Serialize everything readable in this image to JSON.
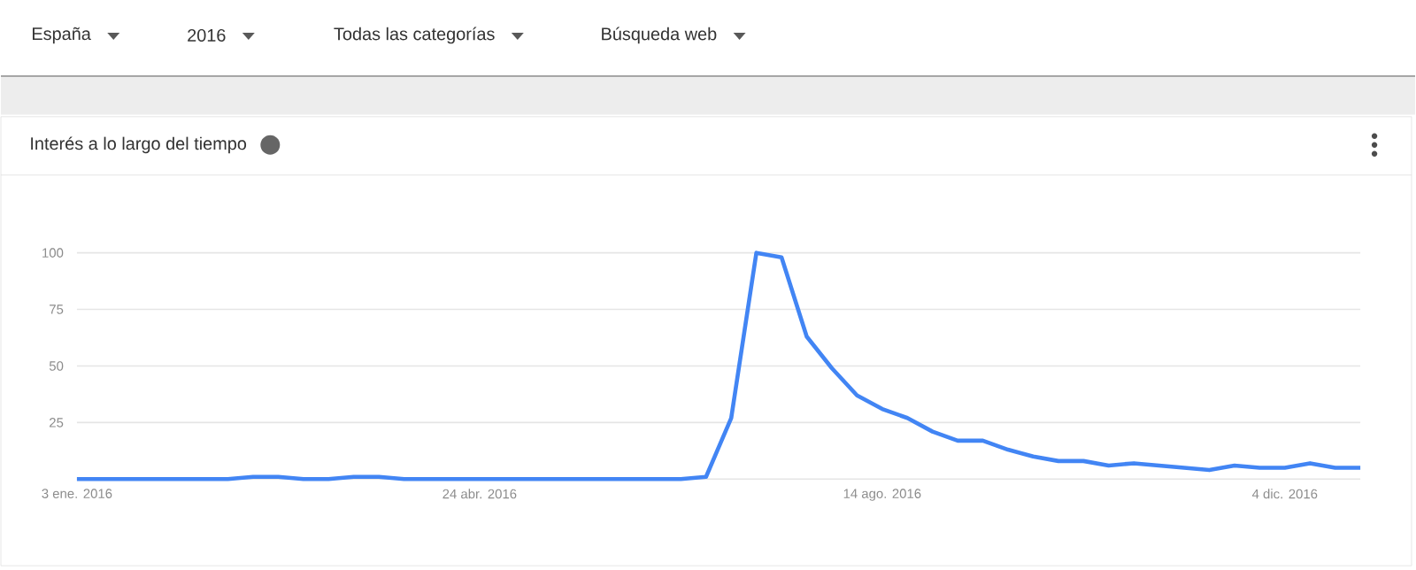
{
  "chart_data": {
    "type": "line",
    "title": "Interés a lo largo del tiempo",
    "annotations": [
      "España",
      "2016",
      "Todas las categorías",
      "Búsqueda web"
    ],
    "x": [
      "2016-01-03",
      "2016-01-10",
      "2016-01-17",
      "2016-01-24",
      "2016-01-31",
      "2016-02-07",
      "2016-02-14",
      "2016-02-21",
      "2016-02-28",
      "2016-03-06",
      "2016-03-13",
      "2016-03-20",
      "2016-03-27",
      "2016-04-03",
      "2016-04-10",
      "2016-04-17",
      "2016-04-24",
      "2016-05-01",
      "2016-05-08",
      "2016-05-15",
      "2016-05-22",
      "2016-05-29",
      "2016-06-05",
      "2016-06-12",
      "2016-06-19",
      "2016-06-26",
      "2016-07-03",
      "2016-07-10",
      "2016-07-17",
      "2016-07-24",
      "2016-07-31",
      "2016-08-07",
      "2016-08-14",
      "2016-08-21",
      "2016-08-28",
      "2016-09-04",
      "2016-09-11",
      "2016-09-18",
      "2016-09-25",
      "2016-10-02",
      "2016-10-09",
      "2016-10-16",
      "2016-10-23",
      "2016-10-30",
      "2016-11-06",
      "2016-11-13",
      "2016-11-20",
      "2016-11-27",
      "2016-12-04",
      "2016-12-11",
      "2016-12-18",
      "2016-12-25"
    ],
    "values": [
      0,
      0,
      0,
      0,
      0,
      0,
      0,
      1,
      1,
      0,
      0,
      1,
      1,
      0,
      0,
      0,
      0,
      0,
      0,
      0,
      0,
      0,
      0,
      0,
      0,
      1,
      27,
      100,
      98,
      63,
      49,
      37,
      31,
      27,
      21,
      17,
      17,
      13,
      10,
      8,
      8,
      6,
      7,
      6,
      5,
      4,
      6,
      5,
      5,
      7,
      5,
      5
    ],
    "color": "#4285f4",
    "line_style": "solid",
    "marker": "none",
    "xlim": [
      "2016-01-03",
      "2016-12-25"
    ],
    "xticks": [
      {
        "value": "2016-01-03",
        "label": "3 ene. 2016"
      },
      {
        "value": "2016-04-24",
        "label": "24 abr. 2016"
      },
      {
        "value": "2016-08-14",
        "label": "14 ago. 2016"
      },
      {
        "value": "2016-12-04",
        "label": "4 dic. 2016"
      }
    ],
    "ylim": [
      0,
      100
    ],
    "yticks": [
      {
        "value": 0,
        "label": null
      },
      25,
      50,
      75,
      100
    ],
    "grid": "y"
  }
}
